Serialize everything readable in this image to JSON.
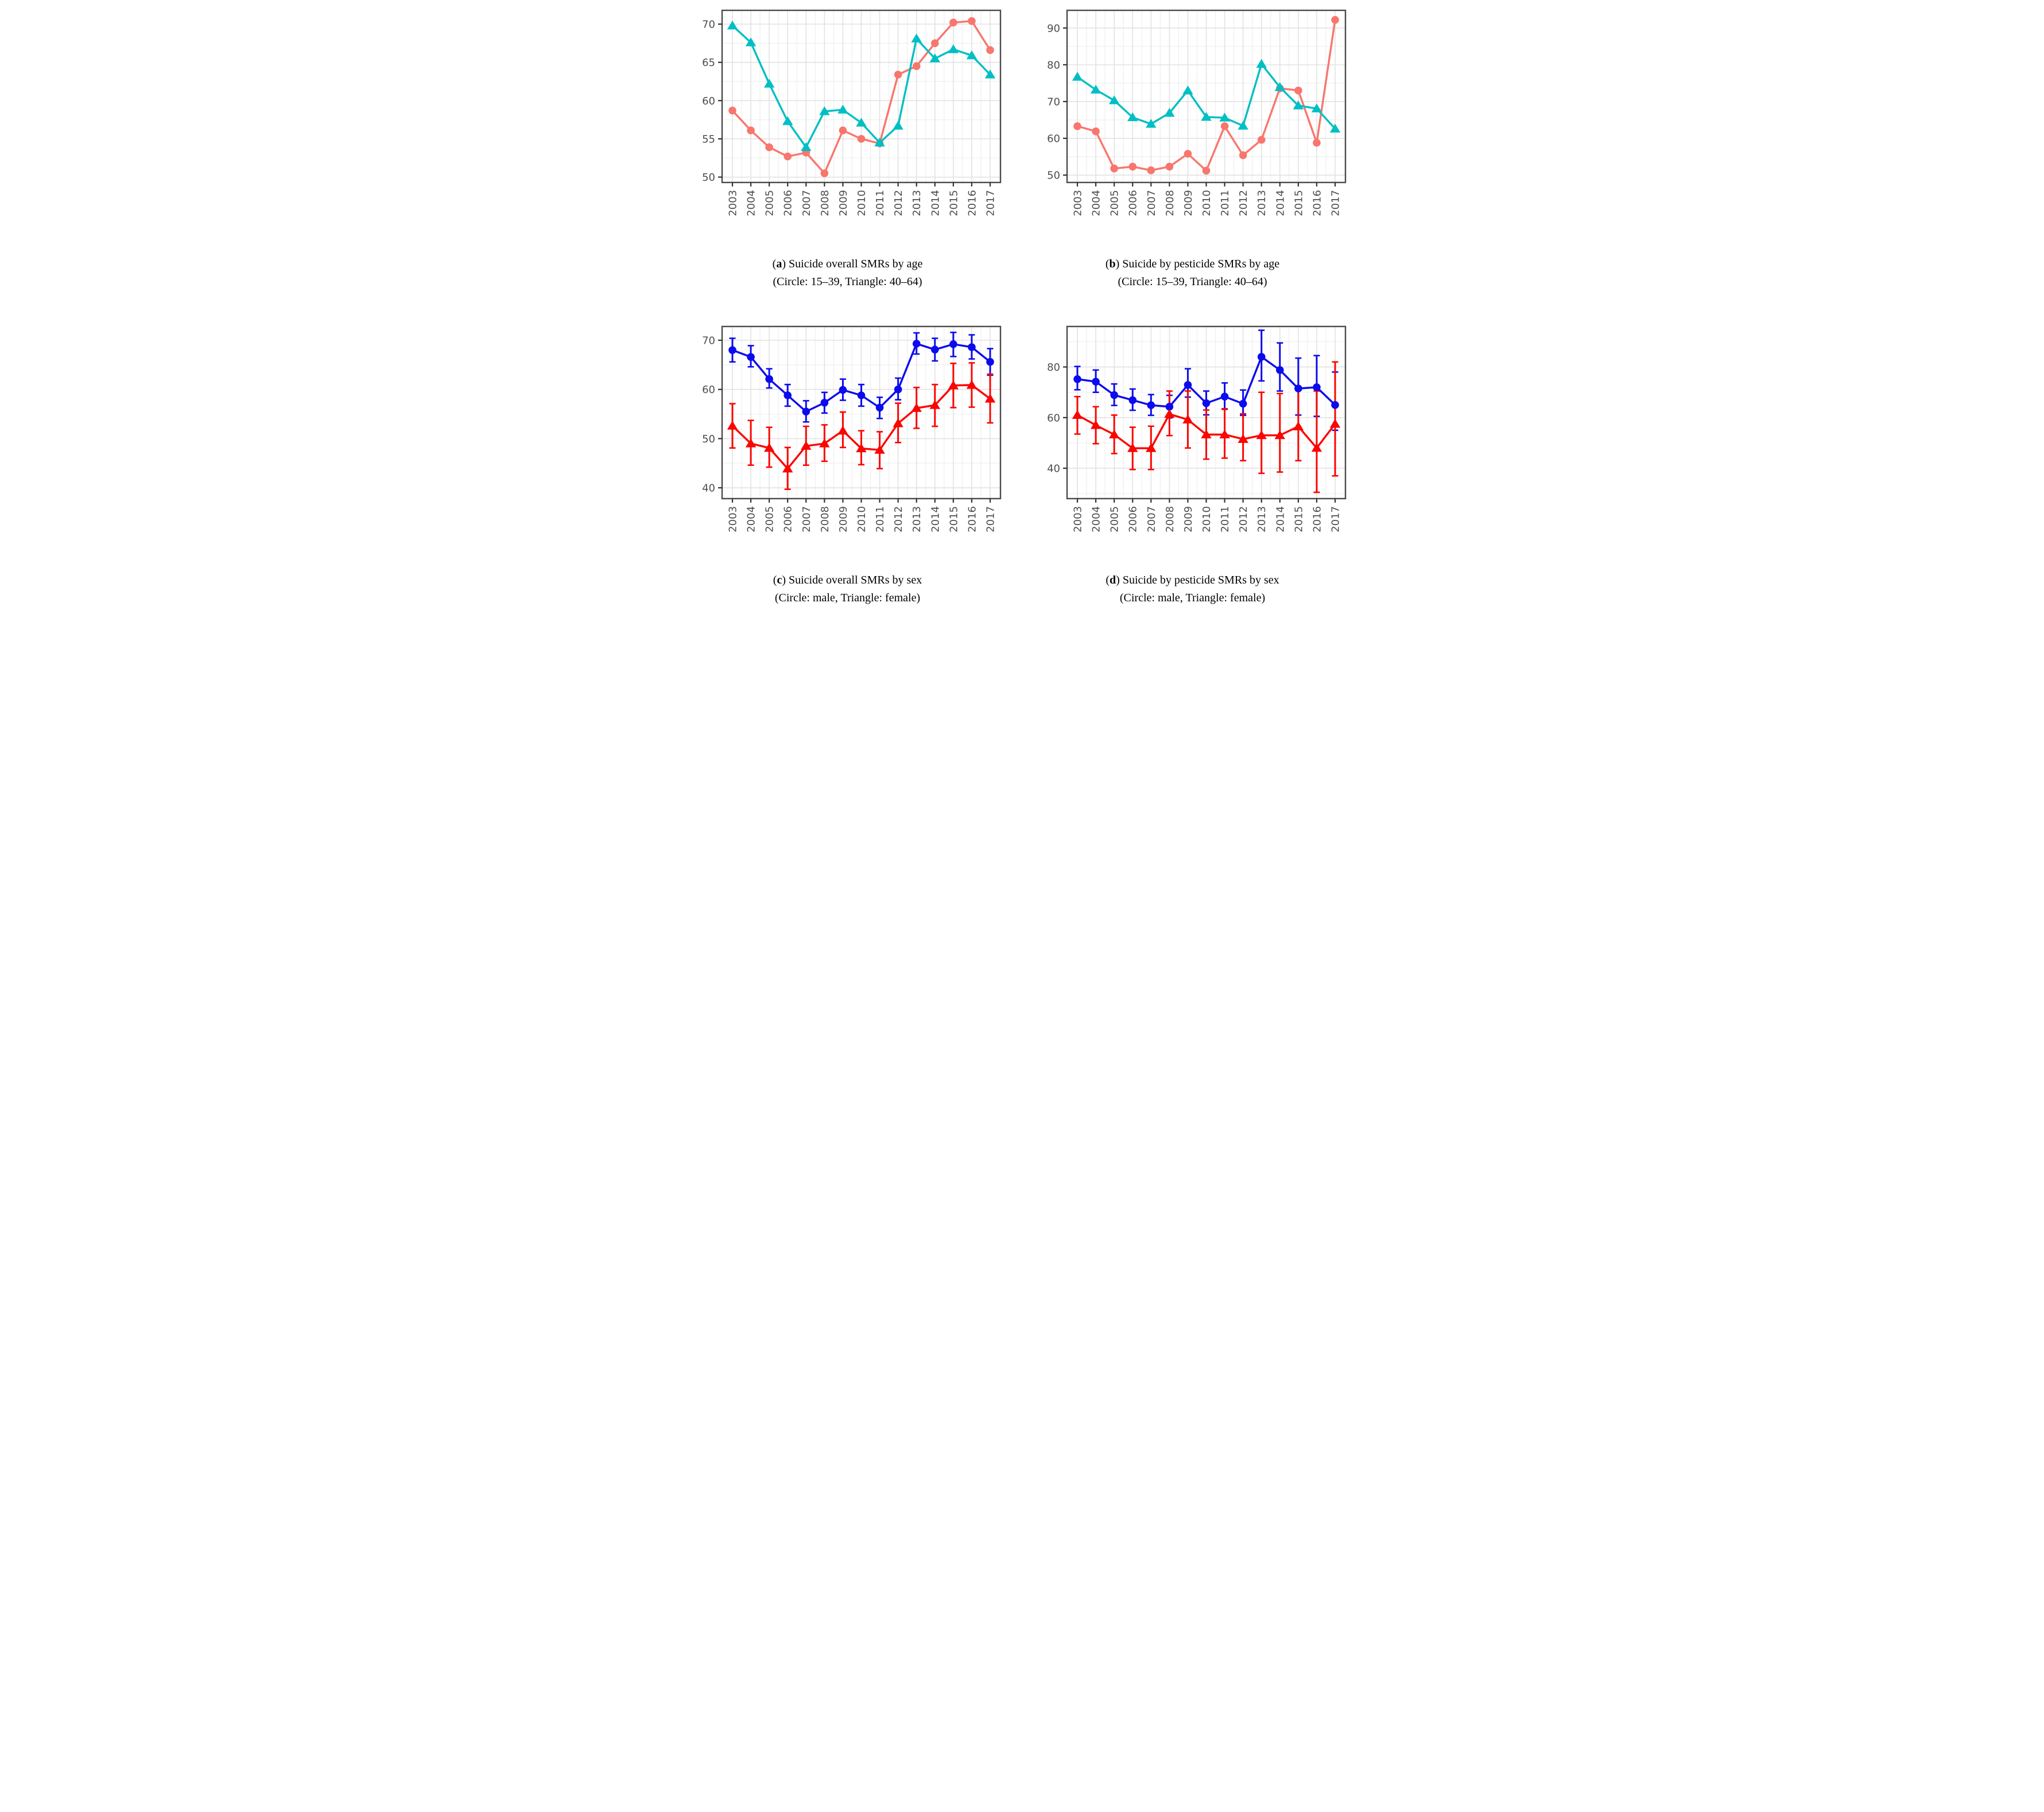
{
  "styles": {
    "background": "#ffffff",
    "panel_border": "#4a4a4a",
    "grid_major": "#e2e2e2",
    "grid_minor": "#efefef",
    "axis_text": "#4d4d4d",
    "tick_mark": "#333333",
    "salmon": "#F8766D",
    "teal": "#00BFC4",
    "blue": "#0b0bee",
    "red": "#fa0500"
  },
  "years": [
    "2003",
    "2004",
    "2005",
    "2006",
    "2007",
    "2008",
    "2009",
    "2010",
    "2011",
    "2012",
    "2013",
    "2014",
    "2015",
    "2016",
    "2017"
  ],
  "chart_data": [
    {
      "id": "a",
      "type": "line",
      "categories": [
        "2003",
        "2004",
        "2005",
        "2006",
        "2007",
        "2008",
        "2009",
        "2010",
        "2011",
        "2012",
        "2013",
        "2014",
        "2015",
        "2016",
        "2017"
      ],
      "yticks": [
        50,
        55,
        60,
        65,
        70
      ],
      "ylim": [
        49.3,
        71.8
      ],
      "grid": true,
      "legend": "none",
      "series": [
        {
          "name": "age 15-39",
          "marker": "circle",
          "color": "#F8766D",
          "values": [
            58.7,
            56.1,
            53.9,
            52.7,
            53.2,
            50.5,
            56.1,
            55.0,
            54.4,
            63.4,
            64.5,
            67.5,
            70.2,
            70.4,
            66.6
          ]
        },
        {
          "name": "age 40-64",
          "marker": "triangle",
          "color": "#00BFC4",
          "values": [
            69.8,
            67.6,
            62.2,
            57.3,
            53.9,
            58.6,
            58.8,
            57.1,
            54.5,
            56.7,
            68.1,
            65.5,
            66.7,
            65.9,
            63.4
          ]
        }
      ],
      "caption": {
        "open": "(",
        "letter": "a",
        "close": ") ",
        "title": "Suicide overall SMRs by age",
        "subtitle": "(Circle: 15–39, Triangle: 40–64)"
      }
    },
    {
      "id": "b",
      "type": "line",
      "categories": [
        "2003",
        "2004",
        "2005",
        "2006",
        "2007",
        "2008",
        "2009",
        "2010",
        "2011",
        "2012",
        "2013",
        "2014",
        "2015",
        "2016",
        "2017"
      ],
      "yticks": [
        50,
        60,
        70,
        80,
        90
      ],
      "ylim": [
        48.0,
        94.8
      ],
      "grid": true,
      "legend": "none",
      "series": [
        {
          "name": "age 15-39",
          "marker": "circle",
          "color": "#F8766D",
          "values": [
            63.3,
            61.9,
            51.8,
            52.3,
            51.3,
            52.3,
            55.8,
            51.2,
            63.3,
            55.4,
            59.6,
            73.6,
            73.0,
            58.8,
            92.2
          ]
        },
        {
          "name": "age 40-64",
          "marker": "triangle",
          "color": "#00BFC4",
          "values": [
            76.7,
            73.2,
            70.3,
            65.7,
            63.9,
            66.9,
            73.0,
            65.8,
            65.6,
            63.4,
            80.2,
            73.9,
            68.9,
            68.1,
            62.6
          ]
        }
      ],
      "caption": {
        "open": "(",
        "letter": "b",
        "close": ") ",
        "title": "Suicide by pesticide SMRs by age",
        "subtitle": "(Circle: 15–39, Triangle: 40–64)"
      }
    },
    {
      "id": "c",
      "type": "line",
      "categories": [
        "2003",
        "2004",
        "2005",
        "2006",
        "2007",
        "2008",
        "2009",
        "2010",
        "2011",
        "2012",
        "2013",
        "2014",
        "2015",
        "2016",
        "2017"
      ],
      "yticks": [
        40,
        50,
        60,
        70
      ],
      "ylim": [
        37.8,
        72.8
      ],
      "grid": true,
      "legend": "none",
      "series": [
        {
          "name": "male",
          "marker": "circle",
          "color": "#0b0bee",
          "values": [
            68.0,
            66.6,
            62.1,
            58.8,
            55.5,
            57.3,
            59.9,
            58.8,
            56.3,
            60.0,
            69.3,
            68.1,
            69.2,
            68.6,
            65.6
          ],
          "ci_lo": [
            65.6,
            64.6,
            60.3,
            56.6,
            53.4,
            55.2,
            57.8,
            56.6,
            54.1,
            57.9,
            67.2,
            65.8,
            66.7,
            66.2,
            62.9
          ],
          "ci_hi": [
            70.4,
            68.9,
            64.2,
            61.0,
            57.7,
            59.4,
            62.1,
            61.0,
            58.4,
            62.3,
            71.5,
            70.4,
            71.6,
            71.1,
            68.3
          ]
        },
        {
          "name": "female",
          "marker": "triangle",
          "color": "#fa0500",
          "values": [
            52.6,
            49.0,
            48.1,
            43.9,
            48.5,
            49.0,
            51.6,
            48.0,
            47.7,
            53.1,
            56.2,
            56.8,
            60.8,
            60.9,
            58.1
          ],
          "ci_lo": [
            48.1,
            44.6,
            44.2,
            39.7,
            44.6,
            45.4,
            48.2,
            44.7,
            43.9,
            49.2,
            52.1,
            52.5,
            56.3,
            56.4,
            53.2
          ],
          "ci_hi": [
            57.1,
            53.7,
            52.3,
            48.2,
            52.5,
            52.8,
            55.4,
            51.6,
            51.4,
            57.2,
            60.4,
            61.0,
            65.3,
            65.4,
            63.1
          ]
        }
      ],
      "caption": {
        "open": "(",
        "letter": "c",
        "close": ") ",
        "title": "Suicide overall SMRs by sex",
        "subtitle": "(Circle: male, Triangle: female)"
      }
    },
    {
      "id": "d",
      "type": "line",
      "categories": [
        "2003",
        "2004",
        "2005",
        "2006",
        "2007",
        "2008",
        "2009",
        "2010",
        "2011",
        "2012",
        "2013",
        "2014",
        "2015",
        "2016",
        "2017"
      ],
      "yticks": [
        40,
        60,
        80
      ],
      "ylim": [
        28.0,
        96.0
      ],
      "grid": true,
      "legend": "none",
      "series": [
        {
          "name": "male",
          "marker": "circle",
          "color": "#0b0bee",
          "values": [
            75.2,
            74.2,
            68.9,
            66.9,
            64.9,
            64.3,
            72.9,
            65.7,
            68.3,
            65.5,
            84.0,
            78.8,
            71.5,
            72.0,
            65.0
          ],
          "ci_lo": [
            71.0,
            70.0,
            64.8,
            62.9,
            60.9,
            59.9,
            68.1,
            61.1,
            63.3,
            60.9,
            74.5,
            70.5,
            61.0,
            60.5,
            55.0
          ],
          "ci_hi": [
            80.2,
            78.8,
            73.3,
            71.3,
            69.1,
            68.8,
            79.3,
            70.5,
            73.7,
            70.9,
            94.5,
            89.5,
            83.5,
            84.5,
            78.0
          ]
        },
        {
          "name": "female",
          "marker": "triangle",
          "color": "#fa0500",
          "values": [
            61.0,
            57.0,
            53.3,
            47.9,
            47.9,
            61.4,
            59.2,
            53.3,
            53.3,
            51.5,
            53.0,
            53.0,
            56.5,
            48.0,
            57.5
          ],
          "ci_lo": [
            53.5,
            49.7,
            45.8,
            39.5,
            39.5,
            52.9,
            48.0,
            43.6,
            44.0,
            43.0,
            38.0,
            38.5,
            43.0,
            30.5,
            37.0
          ],
          "ci_hi": [
            68.3,
            64.3,
            61.0,
            56.2,
            56.6,
            70.5,
            70.5,
            63.0,
            63.5,
            61.5,
            70.0,
            69.5,
            71.0,
            70.5,
            82.0
          ]
        }
      ],
      "caption": {
        "open": "(",
        "letter": "d",
        "close": ") ",
        "title": "Suicide by pesticide SMRs by sex",
        "subtitle": "(Circle: male, Triangle: female)"
      }
    }
  ]
}
